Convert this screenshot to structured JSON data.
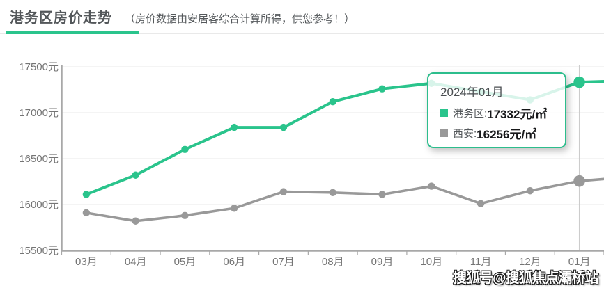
{
  "header": {
    "title": "港务区房价走势",
    "subtitle": "（房价数据由安居客综合计算所得，供您参考！）"
  },
  "colors": {
    "accent_green": "#2AC48C",
    "series_gray": "#999999",
    "axis_line": "#a8a8a8",
    "grid_line": "#e8e8e8",
    "axis_text": "#757575",
    "crosshair": "#cccccc",
    "tooltip_border": "#2cbd8c"
  },
  "chart_data": {
    "type": "line",
    "title": "港务区房价走势",
    "xlabel": "",
    "ylabel": "",
    "grid": true,
    "categories": [
      "03月",
      "04月",
      "05月",
      "06月",
      "07月",
      "08月",
      "09月",
      "10月",
      "11月",
      "12月",
      "01月"
    ],
    "series": [
      {
        "name": "港务区",
        "color": "#2AC48C",
        "values": [
          16110,
          16320,
          16600,
          16840,
          16840,
          17120,
          17260,
          17320,
          17230,
          17140,
          17332
        ]
      },
      {
        "name": "西安",
        "color": "#999999",
        "values": [
          15910,
          15820,
          15880,
          15960,
          16140,
          16130,
          16110,
          16200,
          16010,
          16150,
          16256
        ]
      }
    ],
    "edge_continuation_values": [
      17350,
      16300
    ],
    "ylim": [
      15500,
      17500
    ],
    "y_tick_values": [
      17500,
      17000,
      16500,
      16000,
      15500
    ],
    "y_tick_labels": [
      "17500元",
      "17000元",
      "16500元",
      "16000元",
      "15500元"
    ],
    "highlight_index": 10,
    "legend_position": "tooltip-only"
  },
  "tooltip": {
    "title": "2024年01月",
    "rows": [
      {
        "label": "港务区:",
        "value": "17332元/㎡",
        "marker_color": "#2AC48C"
      },
      {
        "label": "西安:",
        "value": "16256元/㎡",
        "marker_color": "#999999"
      }
    ]
  },
  "watermark": "搜狐号@搜狐焦点灞桥站"
}
